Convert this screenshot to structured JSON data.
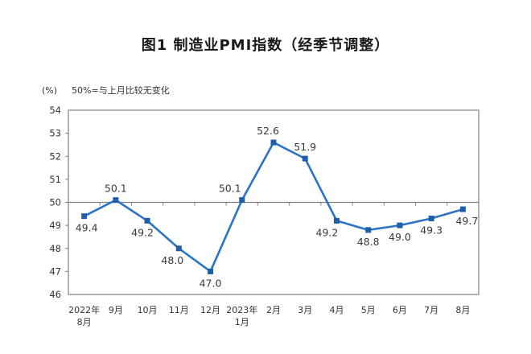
{
  "header": {
    "title": "图1 制造业PMI指数（经季节调整）"
  },
  "chart_data": {
    "type": "line",
    "title": "图1 制造业PMI指数（经季节调整）",
    "ylabel": "(%)",
    "note": "50%=与上月比较无变化",
    "categories": [
      [
        "2022年",
        "8月"
      ],
      [
        "9月"
      ],
      [
        "10月"
      ],
      [
        "11月"
      ],
      [
        "12月"
      ],
      [
        "2023年",
        "1月"
      ],
      [
        "2月"
      ],
      [
        "3月"
      ],
      [
        "4月"
      ],
      [
        "5月"
      ],
      [
        "6月"
      ],
      [
        "7月"
      ],
      [
        "8月"
      ]
    ],
    "values": [
      49.4,
      50.1,
      49.2,
      48.0,
      47.0,
      50.1,
      52.6,
      51.9,
      49.2,
      48.8,
      49.0,
      49.3,
      49.7
    ],
    "data_labels": [
      "49.4",
      "50.1",
      "49.2",
      "48.0",
      "47.0",
      "50.1",
      "52.6",
      "51.9",
      "49.2",
      "48.8",
      "49.0",
      "49.3",
      "49.7"
    ],
    "label_positions": [
      "below",
      "above",
      "below",
      "below",
      "below",
      "above",
      "above",
      "above",
      "below",
      "below",
      "below",
      "below",
      "below"
    ],
    "label_dx": [
      3,
      0,
      -6,
      -8,
      0,
      -15,
      -7,
      0,
      -12,
      0,
      0,
      0,
      5
    ],
    "ylim": [
      46,
      54
    ],
    "ytick_step": 1,
    "reference_line": 50,
    "grid": false,
    "legend": "none",
    "colors": {
      "line": "#2B74C5",
      "marker": "#1E5FA9",
      "axis": "#7f7f7f",
      "text": "#333333",
      "label": "#3a3a3a"
    }
  }
}
